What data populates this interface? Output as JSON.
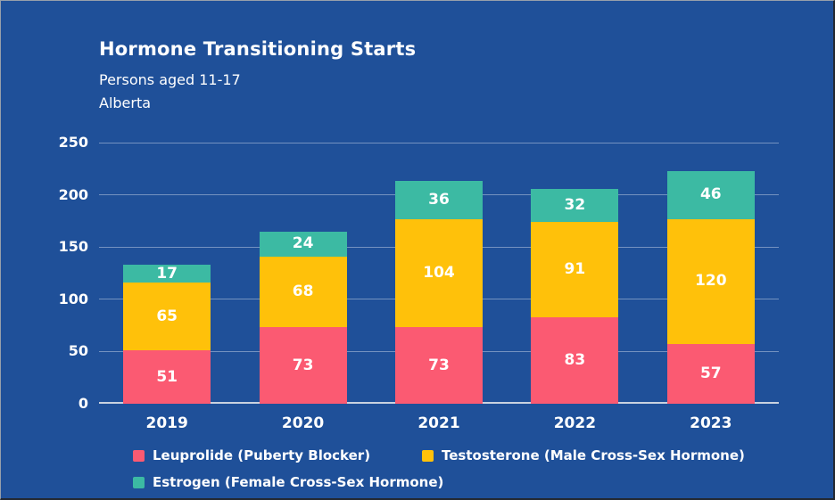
{
  "header": {
    "title": "Hormone Transitioning Starts",
    "subtitle": "Persons aged 11-17",
    "region": "Alberta"
  },
  "colors": {
    "background": "#1F5099",
    "leuprolide": "#FB5A72",
    "testosterone": "#FFC10A",
    "estrogen": "#3CBAA3",
    "gridline": "rgba(255,255,255,0.38)",
    "axis_line": "#C9D2E0",
    "text": "#FFFFFF"
  },
  "chart_data": {
    "type": "bar",
    "stacked": true,
    "title": "Hormone Transitioning Starts",
    "subtitle": "Persons aged 11-17",
    "region_label": "Alberta",
    "categories": [
      "2019",
      "2020",
      "2021",
      "2022",
      "2023"
    ],
    "series": [
      {
        "name": "Leuprolide (Puberty Blocker)",
        "color": "#FB5A72",
        "values": [
          51,
          73,
          73,
          83,
          57
        ]
      },
      {
        "name": "Testosterone (Male Cross-Sex Hormone)",
        "color": "#FFC10A",
        "values": [
          65,
          68,
          104,
          91,
          120
        ]
      },
      {
        "name": "Estrogen (Female Cross-Sex Hormone)",
        "color": "#3CBAA3",
        "values": [
          17,
          24,
          36,
          32,
          46
        ]
      }
    ],
    "totals": [
      133,
      165,
      213,
      206,
      223
    ],
    "ylim": [
      0,
      250
    ],
    "yticks": [
      0,
      50,
      100,
      150,
      200,
      250
    ],
    "grid": true,
    "bar_value_labels": true,
    "legend_position": "bottom"
  }
}
